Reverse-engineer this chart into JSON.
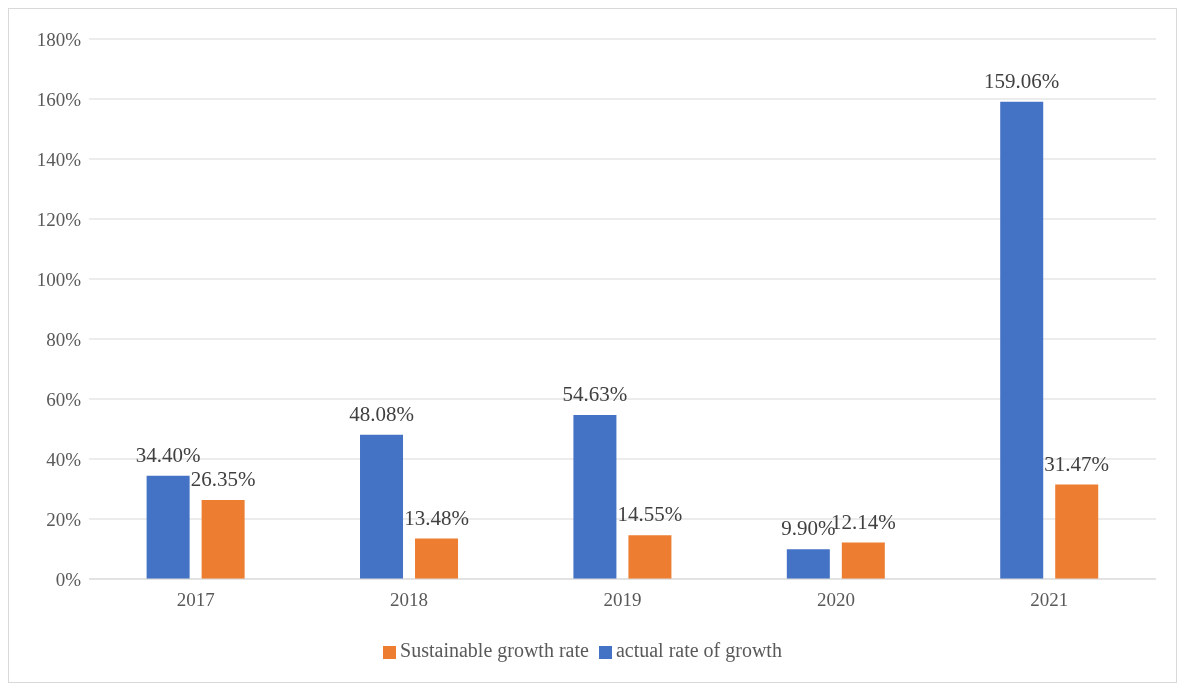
{
  "chart_data": {
    "type": "bar",
    "categories": [
      "2017",
      "2018",
      "2019",
      "2020",
      "2021"
    ],
    "series": [
      {
        "name": "actual rate of growth",
        "color": "#4472c4",
        "values": [
          34.4,
          48.08,
          54.63,
          9.9,
          159.06
        ],
        "value_labels": [
          "34.40%",
          "48.08%",
          "54.63%",
          "9.90%",
          "159.06%"
        ]
      },
      {
        "name": "Sustainable growth rate",
        "color": "#ed7d31",
        "values": [
          26.35,
          13.48,
          14.55,
          12.14,
          31.47
        ],
        "value_labels": [
          "26.35%",
          "13.48%",
          "14.55%",
          "12.14%",
          "31.47%"
        ]
      }
    ],
    "ylim": [
      0,
      180
    ],
    "yticks": [
      {
        "value": 0,
        "label": "0%"
      },
      {
        "value": 20,
        "label": "20%"
      },
      {
        "value": 40,
        "label": "40%"
      },
      {
        "value": 60,
        "label": "60%"
      },
      {
        "value": 80,
        "label": "80%"
      },
      {
        "value": 100,
        "label": "100%"
      },
      {
        "value": 120,
        "label": "120%"
      },
      {
        "value": 140,
        "label": "140%"
      },
      {
        "value": 160,
        "label": "160%"
      },
      {
        "value": 180,
        "label": "180%"
      }
    ],
    "grid": "y",
    "legend": "bottom"
  }
}
